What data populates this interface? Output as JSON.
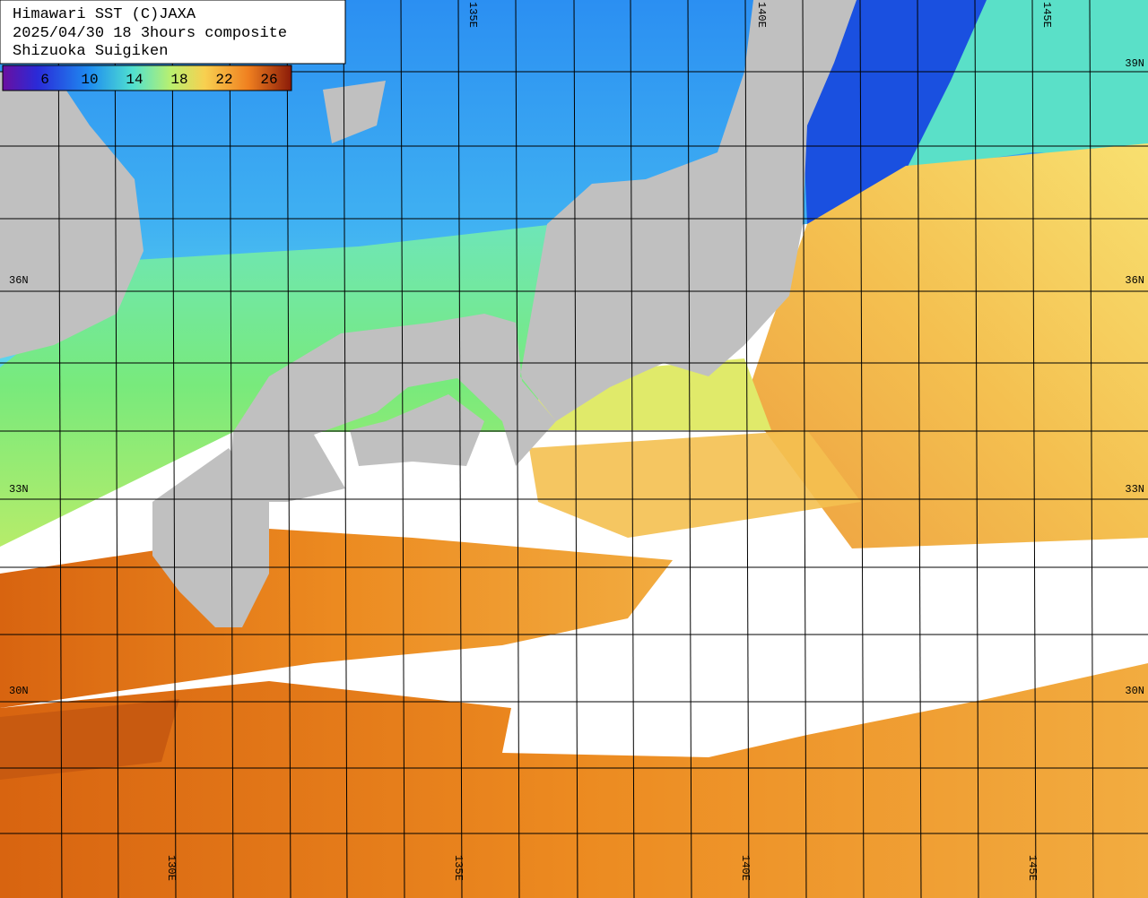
{
  "header": {
    "lines": [
      "Himawari SST (C)JAXA",
      "2025/04/30 18 3hours composite",
      "Shizuoka Suigiken"
    ]
  },
  "colorbar": {
    "labels": [
      6,
      10,
      14,
      18,
      22,
      26
    ]
  },
  "grid_labels": {
    "lat": [
      "39N",
      "36N",
      "33N",
      "30N"
    ],
    "lon_top": [
      "135E",
      "140E",
      "145E"
    ],
    "lon_bottom": [
      "130E",
      "135E",
      "140E",
      "145E"
    ]
  }
}
